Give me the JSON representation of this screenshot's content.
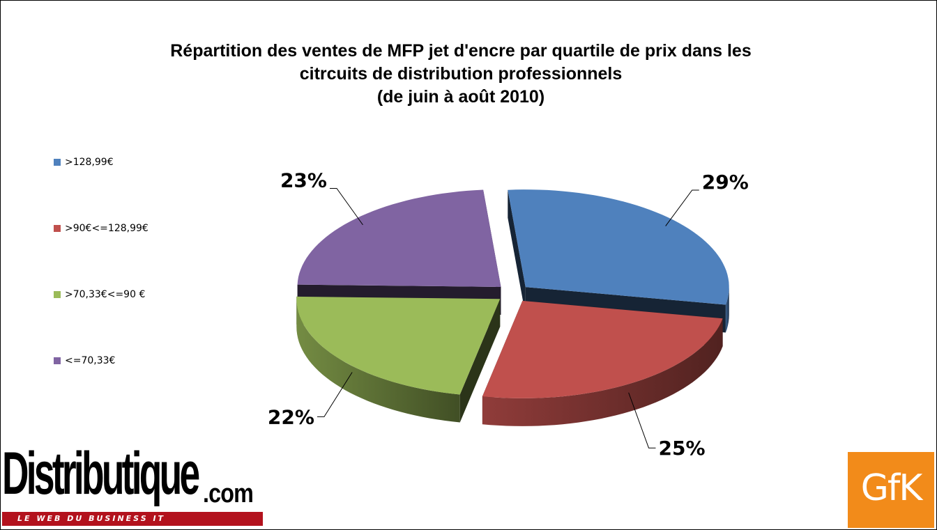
{
  "chart_data": {
    "type": "pie",
    "title": [
      "Répartition des ventes de MFP jet d'encre par quartile de prix dans les",
      "citrcuits de distribution professionnels",
      "(de juin à août 2010)"
    ],
    "three_d": true,
    "exploded": true,
    "legend_position": "left",
    "slices": [
      {
        "name": ">128,99€",
        "value": 29,
        "label": "29%",
        "color": "#4f81bd"
      },
      {
        "name": ">90€<=128,99€",
        "value": 25,
        "label": "25%",
        "color": "#c0504d"
      },
      {
        "name": ">70,33€<=90 €",
        "value": 22,
        "label": "22%",
        "color": "#9bbb59"
      },
      {
        "name": "<=70,33€",
        "value": 23,
        "label": "23%",
        "color": "#8064a2"
      }
    ]
  },
  "logos": {
    "distributique": {
      "name": "Distributique",
      "domain": ".com",
      "tagline": "LE WEB DU BUSINESS IT",
      "color": "#b3121d"
    },
    "gfk": {
      "text": "GfK",
      "color": "#f28b1a"
    }
  }
}
